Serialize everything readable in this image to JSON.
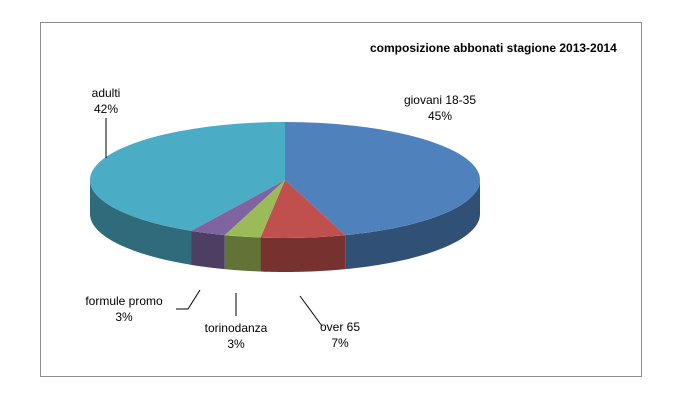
{
  "chart_data": {
    "type": "pie",
    "title": "composizione abbonati stagione 2013-2014",
    "slices": [
      {
        "label": "giovani 18-35",
        "value": 45,
        "display": "45%",
        "color": "#4f81bd"
      },
      {
        "label": "over 65",
        "value": 7,
        "display": "7%",
        "color": "#c0504d"
      },
      {
        "label": "torinodanza",
        "value": 3,
        "display": "3%",
        "color": "#9bbb59"
      },
      {
        "label": "formule promo",
        "value": 3,
        "display": "3%",
        "color": "#8064a2"
      },
      {
        "label": "adulti",
        "value": 42,
        "display": "42%",
        "color": "#4bacc6"
      }
    ],
    "style": "3d"
  }
}
